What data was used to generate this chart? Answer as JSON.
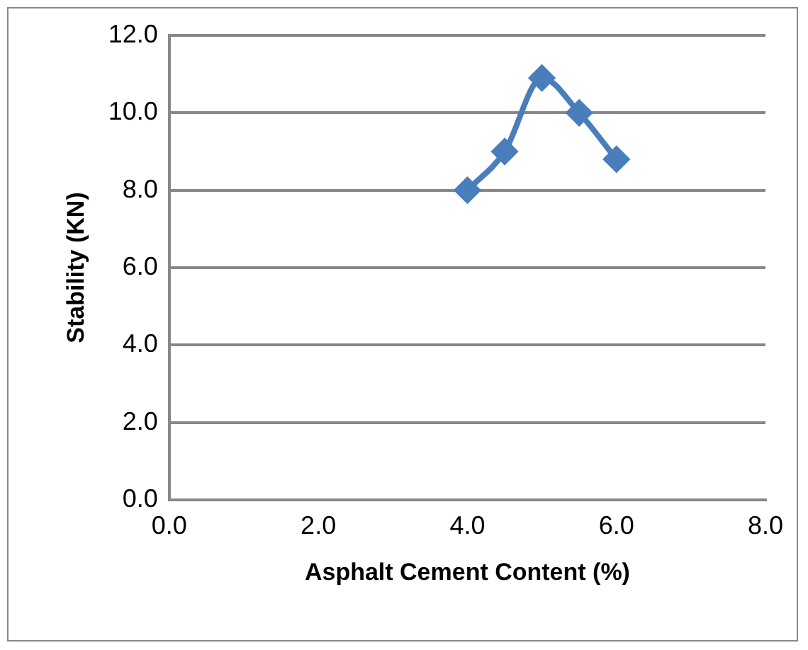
{
  "chart_data": {
    "type": "line",
    "xlabel": "Asphalt Cement Content (%)",
    "ylabel": "Stability (KN)",
    "x": [
      4,
      4.5,
      5,
      5.5,
      6
    ],
    "series": [
      {
        "color": "#4a7ebb",
        "values": [
          8,
          9,
          10.9,
          10,
          8.8
        ]
      }
    ],
    "xlim": [
      0,
      8
    ],
    "xticks": [
      {
        "value": 0,
        "label": "0.0"
      },
      {
        "value": 2,
        "label": "2.0"
      },
      {
        "value": 4,
        "label": "4.0"
      },
      {
        "value": 6,
        "label": "6.0"
      },
      {
        "value": 8,
        "label": "8.0"
      }
    ],
    "ylim": [
      0,
      12
    ],
    "yticks": [
      {
        "value": 0,
        "label": "0.0"
      },
      {
        "value": 2,
        "label": "2.0"
      },
      {
        "value": 4,
        "label": "4.0"
      },
      {
        "value": 6,
        "label": "6.0"
      },
      {
        "value": 8,
        "label": "8.0"
      },
      {
        "value": 10,
        "label": "10.0"
      },
      {
        "value": 12,
        "label": "12.0"
      }
    ],
    "grid": "y",
    "legend": false,
    "marker": "diamond",
    "line_style": "solid"
  }
}
